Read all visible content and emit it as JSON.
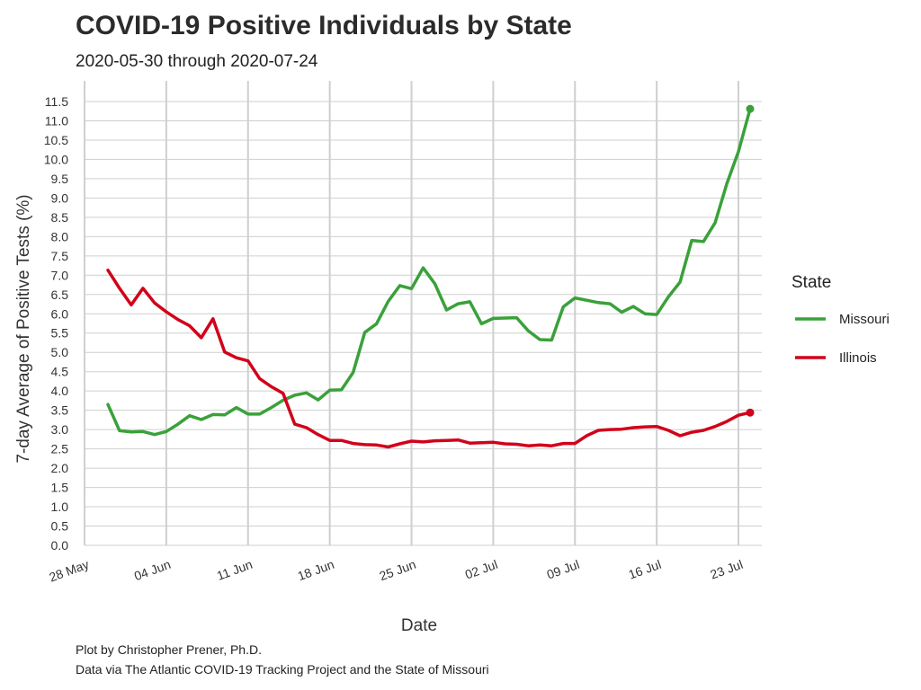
{
  "chart_data": {
    "type": "line",
    "title": "COVID-19 Positive Individuals by State",
    "subtitle": "2020-05-30 through 2020-07-24",
    "xlabel": "Date",
    "ylabel": "7-day Average of Positive Tests (%)",
    "caption": [
      "Plot by Christopher Prener, Ph.D.",
      "Data via The Atlantic COVID-19 Tracking Project and the State of Missouri"
    ],
    "x_ticks": [
      "28 May",
      "04 Jun",
      "11 Jun",
      "18 Jun",
      "25 Jun",
      "02 Jul",
      "09 Jul",
      "16 Jul",
      "23 Jul"
    ],
    "y_ticks": [
      "0.0",
      "0.5",
      "1.0",
      "1.5",
      "2.0",
      "2.5",
      "3.0",
      "3.5",
      "4.0",
      "4.5",
      "5.0",
      "5.5",
      "6.0",
      "6.5",
      "7.0",
      "7.5",
      "8.0",
      "8.5",
      "9.0",
      "9.5",
      "10.0",
      "10.5",
      "11.0",
      "11.5"
    ],
    "xlim": [
      "2020-05-28",
      "2020-07-25"
    ],
    "ylim": [
      0,
      11.5
    ],
    "legend": {
      "title": "State",
      "position": "right"
    },
    "x": [
      "2020-05-30",
      "2020-05-31",
      "2020-06-01",
      "2020-06-02",
      "2020-06-03",
      "2020-06-04",
      "2020-06-05",
      "2020-06-06",
      "2020-06-07",
      "2020-06-08",
      "2020-06-09",
      "2020-06-10",
      "2020-06-11",
      "2020-06-12",
      "2020-06-13",
      "2020-06-14",
      "2020-06-15",
      "2020-06-16",
      "2020-06-17",
      "2020-06-18",
      "2020-06-19",
      "2020-06-20",
      "2020-06-21",
      "2020-06-22",
      "2020-06-23",
      "2020-06-24",
      "2020-06-25",
      "2020-06-26",
      "2020-06-27",
      "2020-06-28",
      "2020-06-29",
      "2020-06-30",
      "2020-07-01",
      "2020-07-02",
      "2020-07-03",
      "2020-07-04",
      "2020-07-05",
      "2020-07-06",
      "2020-07-07",
      "2020-07-08",
      "2020-07-09",
      "2020-07-10",
      "2020-07-11",
      "2020-07-12",
      "2020-07-13",
      "2020-07-14",
      "2020-07-15",
      "2020-07-16",
      "2020-07-17",
      "2020-07-18",
      "2020-07-19",
      "2020-07-20",
      "2020-07-21",
      "2020-07-22",
      "2020-07-23",
      "2020-07-24"
    ],
    "series": [
      {
        "name": "Missouri",
        "color": "#3aa13a",
        "values": [
          3.65,
          2.97,
          2.94,
          2.95,
          2.87,
          2.95,
          3.14,
          3.36,
          3.26,
          3.39,
          3.38,
          3.57,
          3.4,
          3.4,
          3.57,
          3.76,
          3.89,
          3.95,
          3.77,
          4.02,
          4.03,
          4.48,
          5.52,
          5.74,
          6.32,
          6.73,
          6.65,
          7.19,
          6.78,
          6.1,
          6.26,
          6.31,
          5.74,
          5.88,
          5.89,
          5.9,
          5.56,
          5.33,
          5.32,
          6.18,
          6.41,
          6.35,
          6.29,
          6.26,
          6.04,
          6.19,
          6.0,
          5.98,
          6.44,
          6.82,
          7.9,
          7.87,
          8.36,
          9.37,
          10.2,
          11.31
        ]
      },
      {
        "name": "Illinois",
        "color": "#d1021a",
        "values": [
          7.13,
          6.66,
          6.23,
          6.66,
          6.28,
          6.05,
          5.85,
          5.69,
          5.38,
          5.87,
          5.01,
          4.86,
          4.78,
          4.32,
          4.11,
          3.94,
          3.14,
          3.05,
          2.87,
          2.72,
          2.72,
          2.64,
          2.61,
          2.6,
          2.55,
          2.63,
          2.7,
          2.68,
          2.71,
          2.72,
          2.73,
          2.65,
          2.66,
          2.67,
          2.63,
          2.62,
          2.58,
          2.6,
          2.58,
          2.64,
          2.64,
          2.84,
          2.98,
          3.0,
          3.01,
          3.05,
          3.07,
          3.08,
          2.98,
          2.84,
          2.93,
          2.98,
          3.08,
          3.21,
          3.37,
          3.44
        ]
      }
    ]
  }
}
